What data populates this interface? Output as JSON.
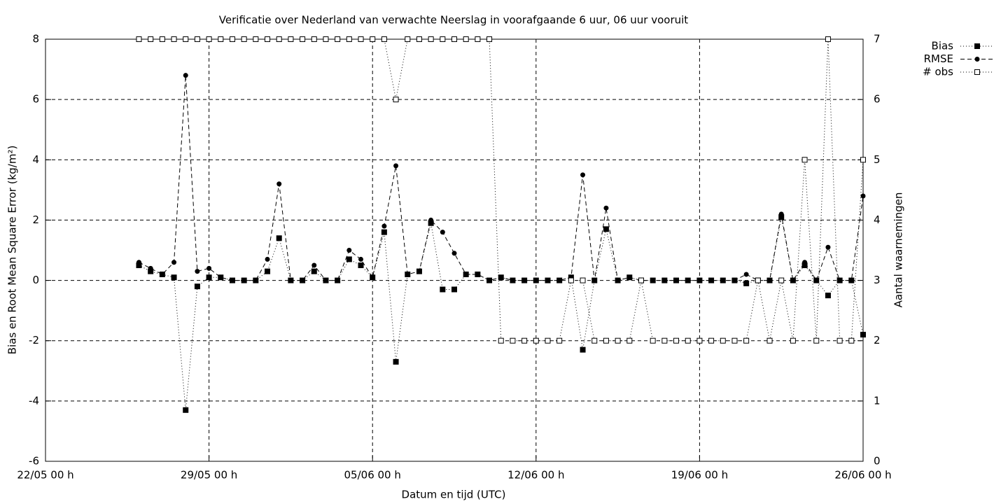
{
  "chart_data": {
    "type": "line",
    "title": "Verificatie over Nederland van verwachte Neerslag in voorafgaande 6 uur, 06 uur vooruit",
    "xlabel": "Datum en tijd (UTC)",
    "ylabel": "Bias en Root Mean Square Error (kg/m²)",
    "y2label": "Aantal waarnemingen",
    "x": [
      4,
      4.5,
      5,
      5.5,
      6,
      6.5,
      7,
      7.5,
      8,
      8.5,
      9,
      9.5,
      10,
      10.5,
      11,
      11.5,
      12,
      12.5,
      13,
      13.5,
      14,
      14.5,
      15,
      15.5,
      16,
      16.5,
      17,
      17.5,
      18,
      18.5,
      19,
      19.5,
      20,
      20.5,
      21,
      21.5,
      22,
      22.5,
      23,
      23.5,
      24,
      24.5,
      25,
      25.5,
      26,
      26.5,
      27,
      27.5,
      28,
      28.5,
      29,
      29.5,
      30,
      30.5,
      31,
      31.5,
      32,
      32.5,
      33,
      33.5,
      34,
      34.5,
      35
    ],
    "xlim": [
      0,
      35
    ],
    "xticks": [
      {
        "value": 0,
        "label": "22/05 00 h"
      },
      {
        "value": 7,
        "label": "29/05 00 h"
      },
      {
        "value": 14,
        "label": "05/06 00 h"
      },
      {
        "value": 21,
        "label": "12/06 00 h"
      },
      {
        "value": 28,
        "label": "19/06 00 h"
      },
      {
        "value": 35,
        "label": "26/06 00 h"
      }
    ],
    "ylim": [
      -6,
      8
    ],
    "yticks": [
      -6,
      -4,
      -2,
      0,
      2,
      4,
      6,
      8
    ],
    "y2lim": [
      0,
      7
    ],
    "y2ticks": [
      0,
      1,
      2,
      3,
      4,
      5,
      6,
      7
    ],
    "grid": true,
    "legend": "top-right",
    "series": [
      {
        "name": "Bias",
        "color": "#000000",
        "line": "dotted",
        "marker": "filled-square",
        "values": [
          0.5,
          0.3,
          0.2,
          0.1,
          -4.3,
          -0.2,
          0.1,
          0.1,
          0,
          0,
          0,
          0.3,
          1.4,
          0,
          0,
          0.3,
          0,
          0,
          0.7,
          0.5,
          0.1,
          1.6,
          -2.7,
          0.2,
          0.3,
          1.9,
          -0.3,
          -0.3,
          0.2,
          0.2,
          0,
          0.1,
          0,
          0,
          0,
          0,
          0,
          0.1,
          -2.3,
          0,
          1.7,
          0,
          0.1,
          0,
          0,
          0,
          0,
          0,
          0,
          0,
          0,
          0,
          -0.1,
          0,
          0,
          2.1,
          0,
          0.5,
          0,
          -0.5,
          0,
          0,
          -1.8
        ]
      },
      {
        "name": "RMSE",
        "color": "#000000",
        "line": "dashed",
        "marker": "filled-circle",
        "values": [
          0.6,
          0.4,
          0.2,
          0.6,
          6.8,
          0.3,
          0.4,
          0.1,
          0,
          0,
          0,
          0.7,
          3.2,
          0,
          0,
          0.5,
          0,
          0,
          1.0,
          0.7,
          0.1,
          1.8,
          3.8,
          0.2,
          0.3,
          2.0,
          1.6,
          0.9,
          0.2,
          0.2,
          0,
          0.1,
          0,
          0,
          0,
          0,
          0,
          0.1,
          3.5,
          0,
          2.4,
          0,
          0.1,
          0,
          0,
          0,
          0,
          0,
          0,
          0,
          0,
          0,
          0.2,
          0,
          0,
          2.2,
          0,
          0.6,
          0,
          1.1,
          0,
          0,
          2.8
        ]
      },
      {
        "name": "# obs",
        "color": "#000000",
        "line": "dotted",
        "marker": "open-square",
        "axis": "y2",
        "values": [
          7,
          7,
          7,
          7,
          7,
          7,
          7,
          7,
          7,
          7,
          7,
          7,
          7,
          7,
          7,
          7,
          7,
          7,
          7,
          7,
          7,
          7,
          6,
          7,
          7,
          7,
          7,
          7,
          7,
          7,
          7,
          2,
          2,
          2,
          2,
          2,
          2,
          3,
          3,
          2,
          2,
          2,
          2,
          3,
          2,
          2,
          2,
          2,
          2,
          2,
          2,
          2,
          2,
          3,
          2,
          3,
          2,
          5,
          2,
          7,
          2,
          2,
          5
        ]
      }
    ]
  }
}
